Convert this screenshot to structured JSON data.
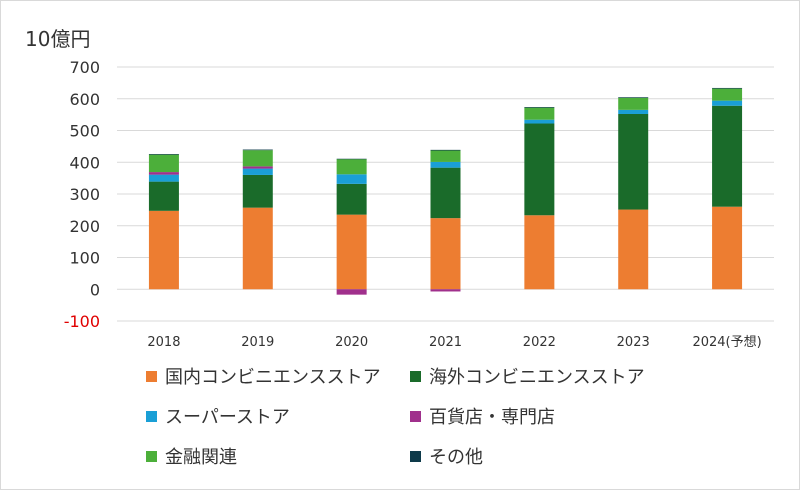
{
  "chart_data": {
    "type": "bar",
    "stacked": true,
    "unit_label": "10億円",
    "categories": [
      "2018",
      "2019",
      "2020",
      "2021",
      "2022",
      "2023",
      "2024(予想)"
    ],
    "ylim": [
      -100,
      700
    ],
    "yticks": [
      -100,
      0,
      100,
      200,
      300,
      400,
      500,
      600,
      700
    ],
    "grid": true,
    "legend_position": "bottom",
    "series": [
      {
        "name": "国内コンビニエンスストア",
        "color": "#ED7D31",
        "values": [
          247,
          257,
          235,
          224,
          233,
          251,
          260
        ]
      },
      {
        "name": "海外コンビニエンスストア",
        "color": "#1A6B2A",
        "values": [
          92,
          103,
          97,
          159,
          289,
          301,
          318
        ]
      },
      {
        "name": "スーパーストア",
        "color": "#1A9FD6",
        "values": [
          22,
          20,
          30,
          18,
          12,
          13,
          16
        ]
      },
      {
        "name": "百貨店・専門店",
        "color": "#A0308C",
        "values": [
          8,
          7,
          -17,
          -7,
          0,
          0,
          0
        ]
      },
      {
        "name": "金融関連",
        "color": "#4CAF3A",
        "values": [
          55,
          51,
          48,
          36,
          38,
          38,
          38
        ]
      },
      {
        "name": "その他",
        "color": "#0E3A4A",
        "values": [
          2,
          2,
          1,
          2,
          2,
          2,
          2
        ]
      }
    ]
  }
}
